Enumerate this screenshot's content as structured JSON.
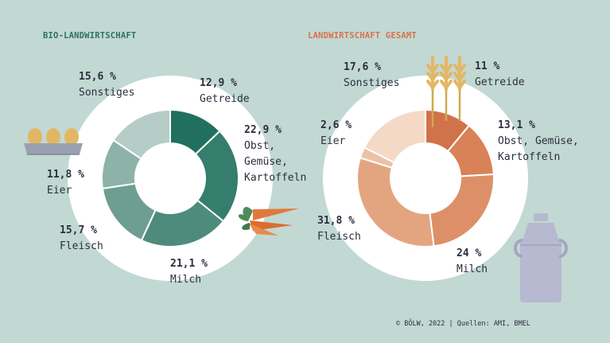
{
  "chart_data": [
    {
      "type": "pie",
      "title": "BIO-LANDWIRTSCHAFT",
      "unit": "%",
      "categories": [
        "Getreide",
        "Obst, Gemüse, Kartoffeln",
        "Milch",
        "Fleisch",
        "Eier",
        "Sonstiges"
      ],
      "values": [
        12.9,
        22.9,
        21.1,
        15.7,
        11.8,
        15.6
      ],
      "labels": [
        "12,9 %",
        "22,9 %",
        "21,1 %",
        "15,7 %",
        "11,8 %",
        "15,6 %"
      ],
      "colors": [
        "#21705f",
        "#357d6c",
        "#4e8b7d",
        "#6e9d91",
        "#8db2a8",
        "#b5cdc6"
      ]
    },
    {
      "type": "pie",
      "title": "LANDWIRTSCHAFT GESAMT",
      "unit": "%",
      "categories": [
        "Getreide",
        "Obst, Gemüse, Kartoffeln",
        "Milch",
        "Fleisch",
        "Eier",
        "Sonstiges"
      ],
      "values": [
        11,
        13.1,
        24,
        31.8,
        2.6,
        17.6
      ],
      "labels": [
        "11 %",
        "13,1 %",
        "24 %",
        "31,8 %",
        "2,6 %",
        "17,6 %"
      ],
      "colors": [
        "#d0724a",
        "#d98258",
        "#dd9067",
        "#e3a57f",
        "#ecc2a6",
        "#f4d9c7"
      ]
    }
  ],
  "source": "© BÖLW, 2022 | Quellen: AMI, BMEL",
  "icons": [
    "eggs-icon",
    "carrot-icon",
    "wheat-icon",
    "milk-can-icon"
  ]
}
